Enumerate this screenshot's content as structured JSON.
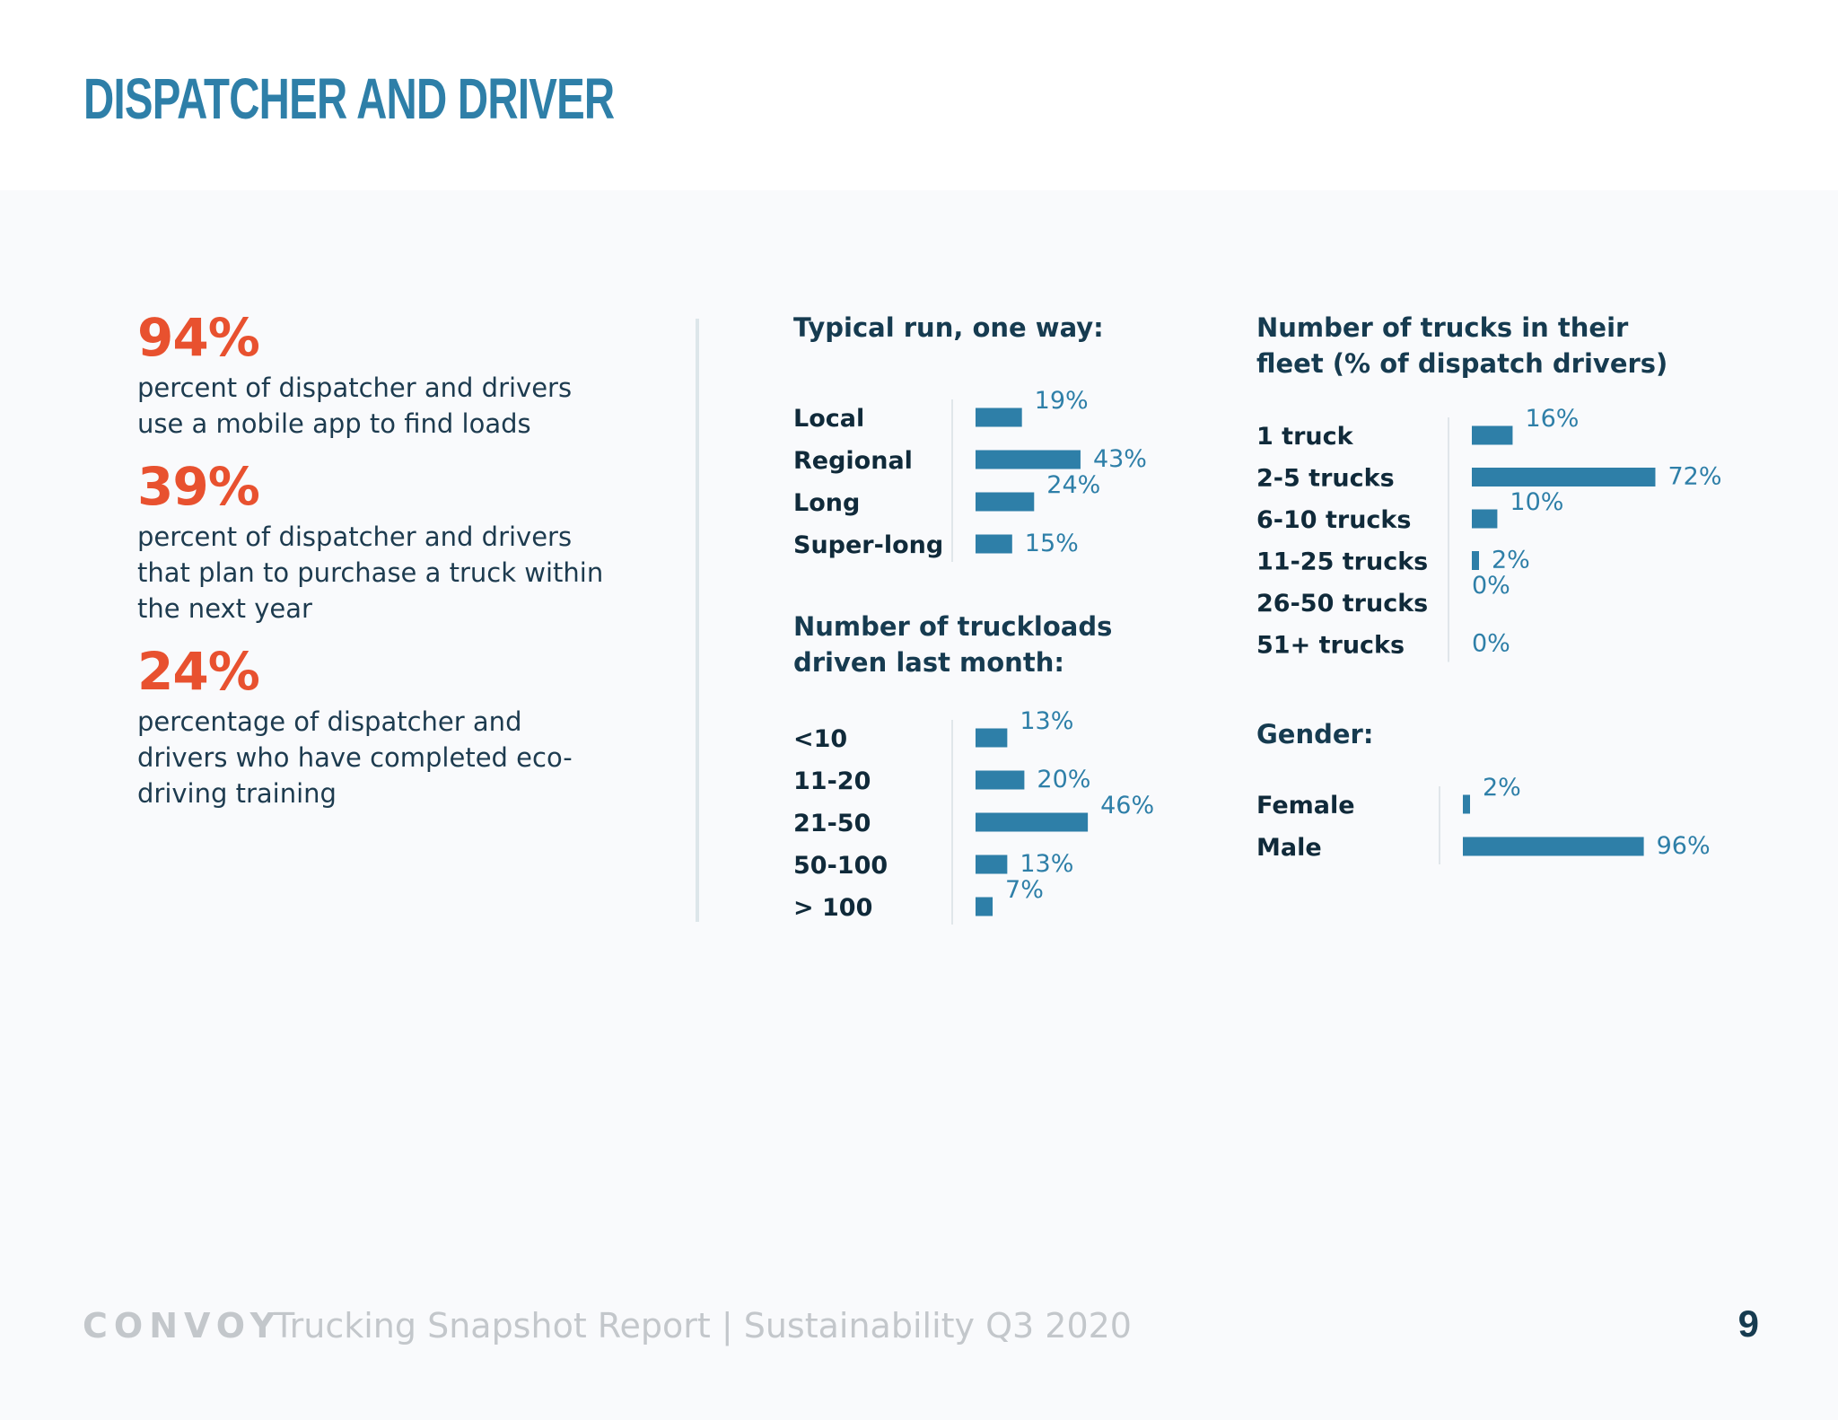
{
  "header": {
    "title": "DISPATCHER AND DRIVER"
  },
  "stats": [
    {
      "value": "94%",
      "description": "percent of dispatcher and drivers use a mobile app to find loads"
    },
    {
      "value": "39%",
      "description": "percent of dispatcher and drivers that plan to purchase a truck within the next year"
    },
    {
      "value": "24%",
      "description": "percentage of dispatcher and drivers who have completed eco-driving training"
    }
  ],
  "colors": {
    "bar": "#2e7fa8",
    "accent": "#e8512f",
    "heading": "#163b50"
  },
  "chart_data": [
    {
      "type": "bar",
      "orientation": "horizontal",
      "title": "Typical run, one way:",
      "categories": [
        "Local",
        "Regional",
        "Long",
        "Super-long"
      ],
      "values": [
        19,
        43,
        24,
        15
      ],
      "value_labels": [
        "19%",
        "43%",
        "24%",
        "15%"
      ]
    },
    {
      "type": "bar",
      "orientation": "horizontal",
      "title": "Number of truckloads driven last month:",
      "categories": [
        "<10",
        "11-20",
        "21-50",
        "50-100",
        "> 100"
      ],
      "values": [
        13,
        20,
        46,
        13,
        7
      ],
      "value_labels": [
        "13%",
        "20%",
        "46%",
        "13%",
        "7%"
      ]
    },
    {
      "type": "bar",
      "orientation": "horizontal",
      "title": "Number of trucks in their fleet (% of dispatch drivers)",
      "categories": [
        "1 truck",
        "2-5 trucks",
        "6-10 trucks",
        "11-25 trucks",
        "26-50 trucks",
        "51+ trucks"
      ],
      "values": [
        16,
        72,
        10,
        2,
        0,
        0
      ],
      "value_labels": [
        "16%",
        "72%",
        "10%",
        "2%",
        "0%",
        "0%"
      ]
    },
    {
      "type": "bar",
      "orientation": "horizontal",
      "title": "Gender:",
      "categories": [
        "Female",
        "Male"
      ],
      "values": [
        2,
        96
      ],
      "value_labels": [
        "2%",
        "96%"
      ]
    }
  ],
  "footer": {
    "brand": "CONVOY",
    "report": "Trucking Snapshot Report | Sustainability Q3 2020",
    "page_number": "9"
  }
}
